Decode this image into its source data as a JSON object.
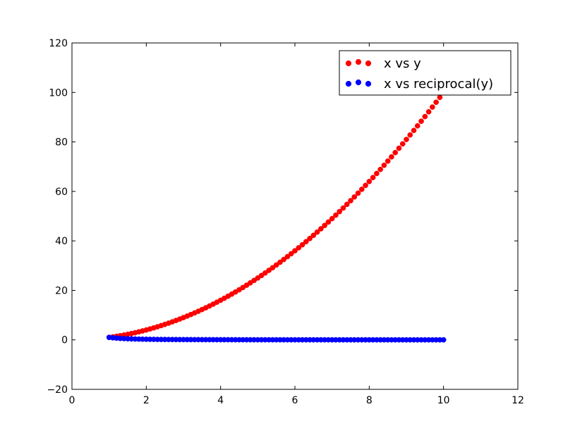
{
  "chart_data": {
    "type": "scatter",
    "xlim": [
      0,
      12
    ],
    "ylim": [
      -20,
      120
    ],
    "x_ticks": [
      "0",
      "2",
      "4",
      "6",
      "8",
      "10",
      "12"
    ],
    "y_ticks": [
      "−20",
      "0",
      "20",
      "40",
      "60",
      "80",
      "100",
      "120"
    ],
    "grid": false,
    "legend_position": "top-right",
    "series": [
      {
        "name": "x vs y",
        "color": "#ff0000",
        "x": [
          1.0,
          1.1,
          1.2,
          1.3,
          1.4,
          1.5,
          1.6,
          1.7,
          1.8,
          1.9,
          2.0,
          2.1,
          2.2,
          2.3,
          2.4,
          2.5,
          2.6,
          2.7,
          2.8,
          2.9,
          3.0,
          3.1,
          3.2,
          3.3,
          3.4,
          3.5,
          3.6,
          3.7,
          3.8,
          3.9,
          4.0,
          4.1,
          4.2,
          4.3,
          4.4,
          4.5,
          4.6,
          4.7,
          4.8,
          4.9,
          5.0,
          5.1,
          5.2,
          5.3,
          5.4,
          5.5,
          5.6,
          5.7,
          5.8,
          5.9,
          6.0,
          6.1,
          6.2,
          6.3,
          6.4,
          6.5,
          6.6,
          6.7,
          6.8,
          6.9,
          7.0,
          7.1,
          7.2,
          7.3,
          7.4,
          7.5,
          7.6,
          7.7,
          7.8,
          7.9,
          8.0,
          8.1,
          8.2,
          8.3,
          8.4,
          8.5,
          8.6,
          8.7,
          8.8,
          8.9,
          9.0,
          9.1,
          9.2,
          9.3,
          9.4,
          9.5,
          9.6,
          9.7,
          9.8,
          9.9,
          10.0
        ],
        "y": [
          1.0,
          1.21,
          1.44,
          1.69,
          1.96,
          2.25,
          2.56,
          2.89,
          3.24,
          3.61,
          4.0,
          4.41,
          4.84,
          5.29,
          5.76,
          6.25,
          6.76,
          7.29,
          7.84,
          8.41,
          9.0,
          9.61,
          10.24,
          10.89,
          11.56,
          12.25,
          12.96,
          13.69,
          14.44,
          15.21,
          16.0,
          16.81,
          17.64,
          18.49,
          19.36,
          20.25,
          21.16,
          22.09,
          23.04,
          24.01,
          25.0,
          26.01,
          27.04,
          28.09,
          29.16,
          30.25,
          31.36,
          32.49,
          33.64,
          34.81,
          36.0,
          37.21,
          38.44,
          39.69,
          40.96,
          42.25,
          43.56,
          44.89,
          46.24,
          47.61,
          49.0,
          50.41,
          51.84,
          53.29,
          54.76,
          56.25,
          57.76,
          59.29,
          60.84,
          62.41,
          64.0,
          65.61,
          67.24,
          68.89,
          70.56,
          72.25,
          73.96,
          75.69,
          77.44,
          79.21,
          81.0,
          82.81,
          84.64,
          86.49,
          88.36,
          90.25,
          92.16,
          94.09,
          96.04,
          98.01,
          100.0
        ]
      },
      {
        "name": "x vs reciprocal(y)",
        "color": "#0000ff",
        "x": [
          1.0,
          1.1,
          1.2,
          1.3,
          1.4,
          1.5,
          1.6,
          1.7,
          1.8,
          1.9,
          2.0,
          2.1,
          2.2,
          2.3,
          2.4,
          2.5,
          2.6,
          2.7,
          2.8,
          2.9,
          3.0,
          3.1,
          3.2,
          3.3,
          3.4,
          3.5,
          3.6,
          3.7,
          3.8,
          3.9,
          4.0,
          4.1,
          4.2,
          4.3,
          4.4,
          4.5,
          4.6,
          4.7,
          4.8,
          4.9,
          5.0,
          5.1,
          5.2,
          5.3,
          5.4,
          5.5,
          5.6,
          5.7,
          5.8,
          5.9,
          6.0,
          6.1,
          6.2,
          6.3,
          6.4,
          6.5,
          6.6,
          6.7,
          6.8,
          6.9,
          7.0,
          7.1,
          7.2,
          7.3,
          7.4,
          7.5,
          7.6,
          7.7,
          7.8,
          7.9,
          8.0,
          8.1,
          8.2,
          8.3,
          8.4,
          8.5,
          8.6,
          8.7,
          8.8,
          8.9,
          9.0,
          9.1,
          9.2,
          9.3,
          9.4,
          9.5,
          9.6,
          9.7,
          9.8,
          9.9,
          10.0
        ],
        "y": [
          1.0,
          0.8264,
          0.6944,
          0.5917,
          0.5102,
          0.4444,
          0.3906,
          0.346,
          0.3086,
          0.277,
          0.25,
          0.2268,
          0.2066,
          0.189,
          0.1736,
          0.16,
          0.1479,
          0.1372,
          0.1276,
          0.1189,
          0.1111,
          0.1041,
          0.0977,
          0.0918,
          0.0865,
          0.0816,
          0.0772,
          0.073,
          0.0693,
          0.0657,
          0.0625,
          0.0595,
          0.0567,
          0.0541,
          0.0517,
          0.0494,
          0.0473,
          0.0453,
          0.0434,
          0.0416,
          0.04,
          0.0384,
          0.037,
          0.0356,
          0.0343,
          0.0331,
          0.0319,
          0.0308,
          0.0297,
          0.0287,
          0.0278,
          0.0269,
          0.026,
          0.0252,
          0.0244,
          0.0237,
          0.023,
          0.0223,
          0.0216,
          0.021,
          0.0204,
          0.0198,
          0.0193,
          0.0188,
          0.0183,
          0.0178,
          0.0173,
          0.0169,
          0.0164,
          0.016,
          0.0156,
          0.0152,
          0.0149,
          0.0145,
          0.0142,
          0.0138,
          0.0135,
          0.0132,
          0.0129,
          0.0126,
          0.0123,
          0.0121,
          0.0118,
          0.0116,
          0.0113,
          0.0111,
          0.0109,
          0.0106,
          0.0104,
          0.0102,
          0.01
        ]
      }
    ]
  }
}
